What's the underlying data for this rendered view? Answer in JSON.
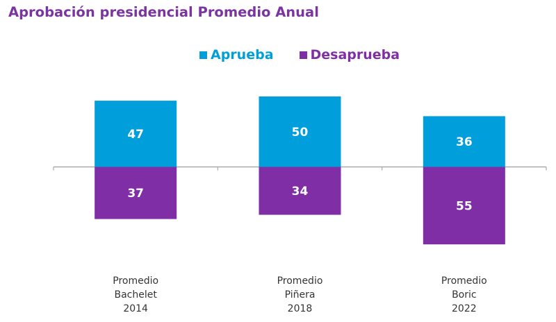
{
  "chart_data": {
    "type": "bar",
    "title": "Aprobación presidencial Promedio Anual",
    "xlabel": "",
    "ylabel": "",
    "categories": [
      [
        "Promedio",
        "Bachelet",
        "2014"
      ],
      [
        "Promedio",
        "Piñera",
        "2018"
      ],
      [
        "Promedio",
        "Boric",
        "2022"
      ]
    ],
    "series": [
      {
        "name": "Aprueba",
        "color": "#009fdc",
        "direction": "up",
        "values": [
          47,
          50,
          36
        ]
      },
      {
        "name": "Desaprueba",
        "color": "#7f2ea5",
        "direction": "down",
        "values": [
          37,
          34,
          55
        ]
      }
    ],
    "grid": false,
    "legend": "top-center",
    "data_labels": true
  },
  "colors": {
    "title": "#7b35a0",
    "axis": "#aaaaaa",
    "label_text": "#ffffff",
    "category_text": "#333333"
  }
}
